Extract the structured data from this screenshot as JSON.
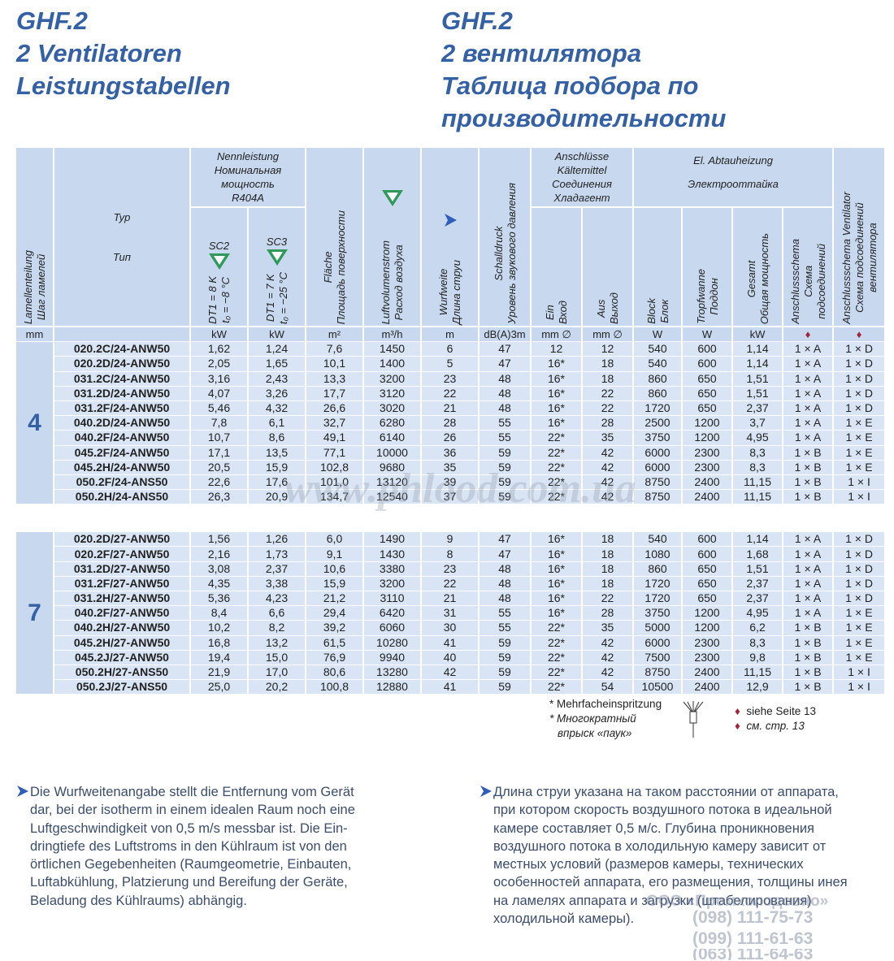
{
  "header": {
    "de": [
      "GHF.2",
      "2 Ventilatoren",
      "Leistungstabellen"
    ],
    "ru": [
      "GHF.2",
      "2 вентилятора",
      "Таблица подбора по",
      "производительности"
    ]
  },
  "table": {
    "head": {
      "lamella": [
        "Lamellenteilung",
        "Шаг ламелей"
      ],
      "type": [
        "Typ",
        "Тип"
      ],
      "capacity": {
        "title": [
          "Nennleistung",
          "Номинальная",
          "мощность",
          "R404A"
        ],
        "sc2": "SC2",
        "sc3": "SC3",
        "dt1": [
          "DT1 = 8 K",
          "t₀ = −8 °C"
        ],
        "dt2": [
          "DT1 = 7 K",
          "t₀ = −25 °C"
        ]
      },
      "area": [
        "Fläche",
        "Площадь поверхности"
      ],
      "airflow": [
        "Luftvolumenstrom",
        "Расход воздуха"
      ],
      "throw": [
        "Wurfweite",
        "Длина струи"
      ],
      "sound": [
        "Schalldruck",
        "Уровень звукового давления"
      ],
      "connections": {
        "title": [
          "Anschlüsse",
          "Kältemittel",
          "Соединения",
          "Хладагент"
        ],
        "in": [
          "Ein",
          "Вход"
        ],
        "out": [
          "Aus",
          "Выход"
        ]
      },
      "defrost": {
        "title": [
          "El. Abtauheizung",
          "Электрооттайка"
        ],
        "block": [
          "Block",
          "Блок"
        ],
        "tray": [
          "Tropfwanne",
          "Поддон"
        ],
        "total": [
          "Gesamt",
          "Общая мощность"
        ],
        "scheme": [
          "Anschlussschema",
          "Схема",
          "подсоединений"
        ]
      },
      "fan": [
        "Anschlussschema Ventilator",
        "Схема подсоединений",
        "вентилятора"
      ]
    },
    "units": [
      "mm",
      "kW",
      "kW",
      "m²",
      "m³/h",
      "m",
      "dB(A)3m",
      "mm ∅",
      "mm ∅",
      "W",
      "W",
      "kW",
      "♦",
      "♦"
    ],
    "groups": [
      {
        "lamella": "4",
        "rows": [
          [
            "020.2C/24-ANW50",
            "1,62",
            "1,24",
            "7,6",
            "1450",
            "6",
            "47",
            "12",
            "12",
            "540",
            "600",
            "1,14",
            "1 × A",
            "1 × D"
          ],
          [
            "020.2D/24-ANW50",
            "2,05",
            "1,65",
            "10,1",
            "1400",
            "5",
            "47",
            "16*",
            "18",
            "540",
            "600",
            "1,14",
            "1 × A",
            "1 × D"
          ],
          [
            "031.2C/24-ANW50",
            "3,16",
            "2,43",
            "13,3",
            "3200",
            "23",
            "48",
            "16*",
            "18",
            "860",
            "650",
            "1,51",
            "1 × A",
            "1 × D"
          ],
          [
            "031.2D/24-ANW50",
            "4,07",
            "3,26",
            "17,7",
            "3120",
            "22",
            "48",
            "16*",
            "22",
            "860",
            "650",
            "1,51",
            "1 × A",
            "1 × D"
          ],
          [
            "031.2F/24-ANW50",
            "5,46",
            "4,32",
            "26,6",
            "3020",
            "21",
            "48",
            "16*",
            "22",
            "1720",
            "650",
            "2,37",
            "1 × A",
            "1 × D"
          ],
          [
            "040.2D/24-ANW50",
            "7,8",
            "6,1",
            "32,7",
            "6280",
            "28",
            "55",
            "16*",
            "28",
            "2500",
            "1200",
            "3,7",
            "1 × A",
            "1 × E"
          ],
          [
            "040.2F/24-ANW50",
            "10,7",
            "8,6",
            "49,1",
            "6140",
            "26",
            "55",
            "22*",
            "35",
            "3750",
            "1200",
            "4,95",
            "1 × A",
            "1 × E"
          ],
          [
            "045.2F/24-ANW50",
            "17,1",
            "13,5",
            "77,1",
            "10000",
            "36",
            "59",
            "22*",
            "42",
            "6000",
            "2300",
            "8,3",
            "1 × B",
            "1 × E"
          ],
          [
            "045.2H/24-ANW50",
            "20,5",
            "15,9",
            "102,8",
            "9680",
            "35",
            "59",
            "22*",
            "42",
            "6000",
            "2300",
            "8,3",
            "1 × B",
            "1 × E"
          ],
          [
            "050.2F/24-ANS50",
            "22,6",
            "17,6",
            "101,0",
            "13120",
            "39",
            "59",
            "22*",
            "42",
            "8750",
            "2400",
            "11,15",
            "1 × B",
            "1 × I"
          ],
          [
            "050.2H/24-ANS50",
            "26,3",
            "20,9",
            "134,7",
            "12540",
            "37",
            "59",
            "22*",
            "42",
            "8750",
            "2400",
            "11,15",
            "1 × B",
            "1 × I"
          ]
        ]
      },
      {
        "lamella": "7",
        "rows": [
          [
            "020.2D/27-ANW50",
            "1,56",
            "1,26",
            "6,0",
            "1490",
            "9",
            "47",
            "16*",
            "18",
            "540",
            "600",
            "1,14",
            "1 × A",
            "1 × D"
          ],
          [
            "020.2F/27-ANW50",
            "2,16",
            "1,73",
            "9,1",
            "1430",
            "8",
            "47",
            "16*",
            "18",
            "1080",
            "600",
            "1,68",
            "1 × A",
            "1 × D"
          ],
          [
            "031.2D/27-ANW50",
            "3,08",
            "2,37",
            "10,6",
            "3380",
            "23",
            "48",
            "16*",
            "18",
            "860",
            "650",
            "1,51",
            "1 × A",
            "1 × D"
          ],
          [
            "031.2F/27-ANW50",
            "4,35",
            "3,38",
            "15,9",
            "3200",
            "22",
            "48",
            "16*",
            "18",
            "1720",
            "650",
            "2,37",
            "1 × A",
            "1 × D"
          ],
          [
            "031.2H/27-ANW50",
            "5,36",
            "4,23",
            "21,2",
            "3110",
            "21",
            "48",
            "16*",
            "22",
            "1720",
            "650",
            "2,37",
            "1 × A",
            "1 × D"
          ],
          [
            "040.2F/27-ANW50",
            "8,4",
            "6,6",
            "29,4",
            "6420",
            "31",
            "55",
            "16*",
            "28",
            "3750",
            "1200",
            "4,95",
            "1 × A",
            "1 × E"
          ],
          [
            "040.2H/27-ANW50",
            "10,2",
            "8,2",
            "39,2",
            "6060",
            "30",
            "55",
            "22*",
            "35",
            "5000",
            "1200",
            "6,2",
            "1 × B",
            "1 × E"
          ],
          [
            "045.2H/27-ANW50",
            "16,8",
            "13,2",
            "61,5",
            "10280",
            "41",
            "59",
            "22*",
            "42",
            "6000",
            "2300",
            "8,3",
            "1 × B",
            "1 × E"
          ],
          [
            "045.2J/27-ANW50",
            "19,4",
            "15,0",
            "76,9",
            "9940",
            "40",
            "59",
            "22*",
            "42",
            "7500",
            "2300",
            "9,8",
            "1 × B",
            "1 × E"
          ],
          [
            "050.2H/27-ANS50",
            "21,9",
            "17,0",
            "80,6",
            "13280",
            "42",
            "59",
            "22*",
            "42",
            "8750",
            "2400",
            "11,15",
            "1 × B",
            "1 × I"
          ],
          [
            "050.2J/27-ANS50",
            "25,0",
            "20,2",
            "100,8",
            "12880",
            "41",
            "59",
            "22*",
            "54",
            "10500",
            "2400",
            "12,9",
            "1 × B",
            "1 × I"
          ]
        ]
      }
    ]
  },
  "footnotes": {
    "injection": [
      "* Mehrfacheinspritzung",
      "* Многократный",
      "впрыск «паук»"
    ],
    "see": [
      "siehe Seite 13",
      "см. стр. 13"
    ]
  },
  "notes": {
    "de": [
      "Die Wurfweitenangabe stellt die Entfernung vom Gerät",
      "dar, bei der isotherm in einem idealen Raum noch eine",
      "Luftgeschwindigkeit von 0,5 m/s messbar ist. Die Ein-",
      "dringtiefe des Luftstroms in den Kühlraum ist von den",
      "örtlichen Gegebenheiten (Raumgeometrie, Einbauten,",
      "Luftabkühlung, Platzierung und Bereifung der Geräte,",
      "Beladung des Kühlraums) abhängig."
    ],
    "ru": [
      "Длина струи указана на таком расстоянии от аппарата,",
      "при котором скорость воздушного потока в идеальной",
      "камере составляет 0,5 м/с. Глубина проникновения",
      "воздушного потока в холодильную камеру зависит от",
      "местных условий (размеров камеры, технических",
      "особенностей аппарата, его размещения, толщины инея",
      "на ламелях аппарата и  загрузки (штабелирования)",
      "холодильной камеры)."
    ]
  },
  "watermark": {
    "site": "www.phlood.com.ua",
    "company": "ООО «Промхолодовно»",
    "phones": [
      "(098) 111-75-73",
      "(099) 111-61-63",
      "(063) 111-64-63"
    ]
  }
}
